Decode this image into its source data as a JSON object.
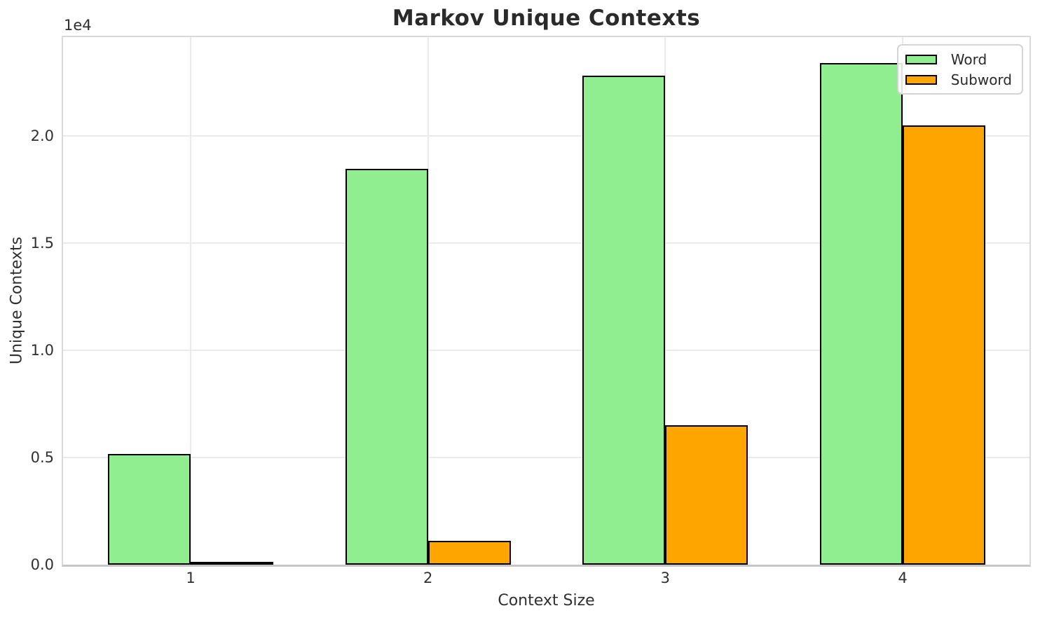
{
  "chart_data": {
    "type": "bar",
    "title": "Markov Unique Contexts",
    "xlabel": "Context Size",
    "ylabel": "Unique Contexts",
    "offset_label": "1e4",
    "categories": [
      "1",
      "2",
      "3",
      "4"
    ],
    "series": [
      {
        "name": "Word",
        "color": "#90EE90",
        "values": [
          5150,
          18450,
          22800,
          23400
        ]
      },
      {
        "name": "Subword",
        "color": "#FFA500",
        "values": [
          100,
          1100,
          6500,
          20500
        ]
      }
    ],
    "bar_edge_color": "#000000",
    "ylim": [
      0,
      24600
    ],
    "yticks": [
      0,
      5000,
      10000,
      15000,
      20000
    ],
    "ytick_labels": [
      "0.0",
      "0.5",
      "1.0",
      "1.5",
      "2.0"
    ],
    "grid": true,
    "legend_position": "upper right",
    "background_color": "#ffffff",
    "grid_color": "#ebebeb",
    "text_color": "#2a2a2a"
  }
}
